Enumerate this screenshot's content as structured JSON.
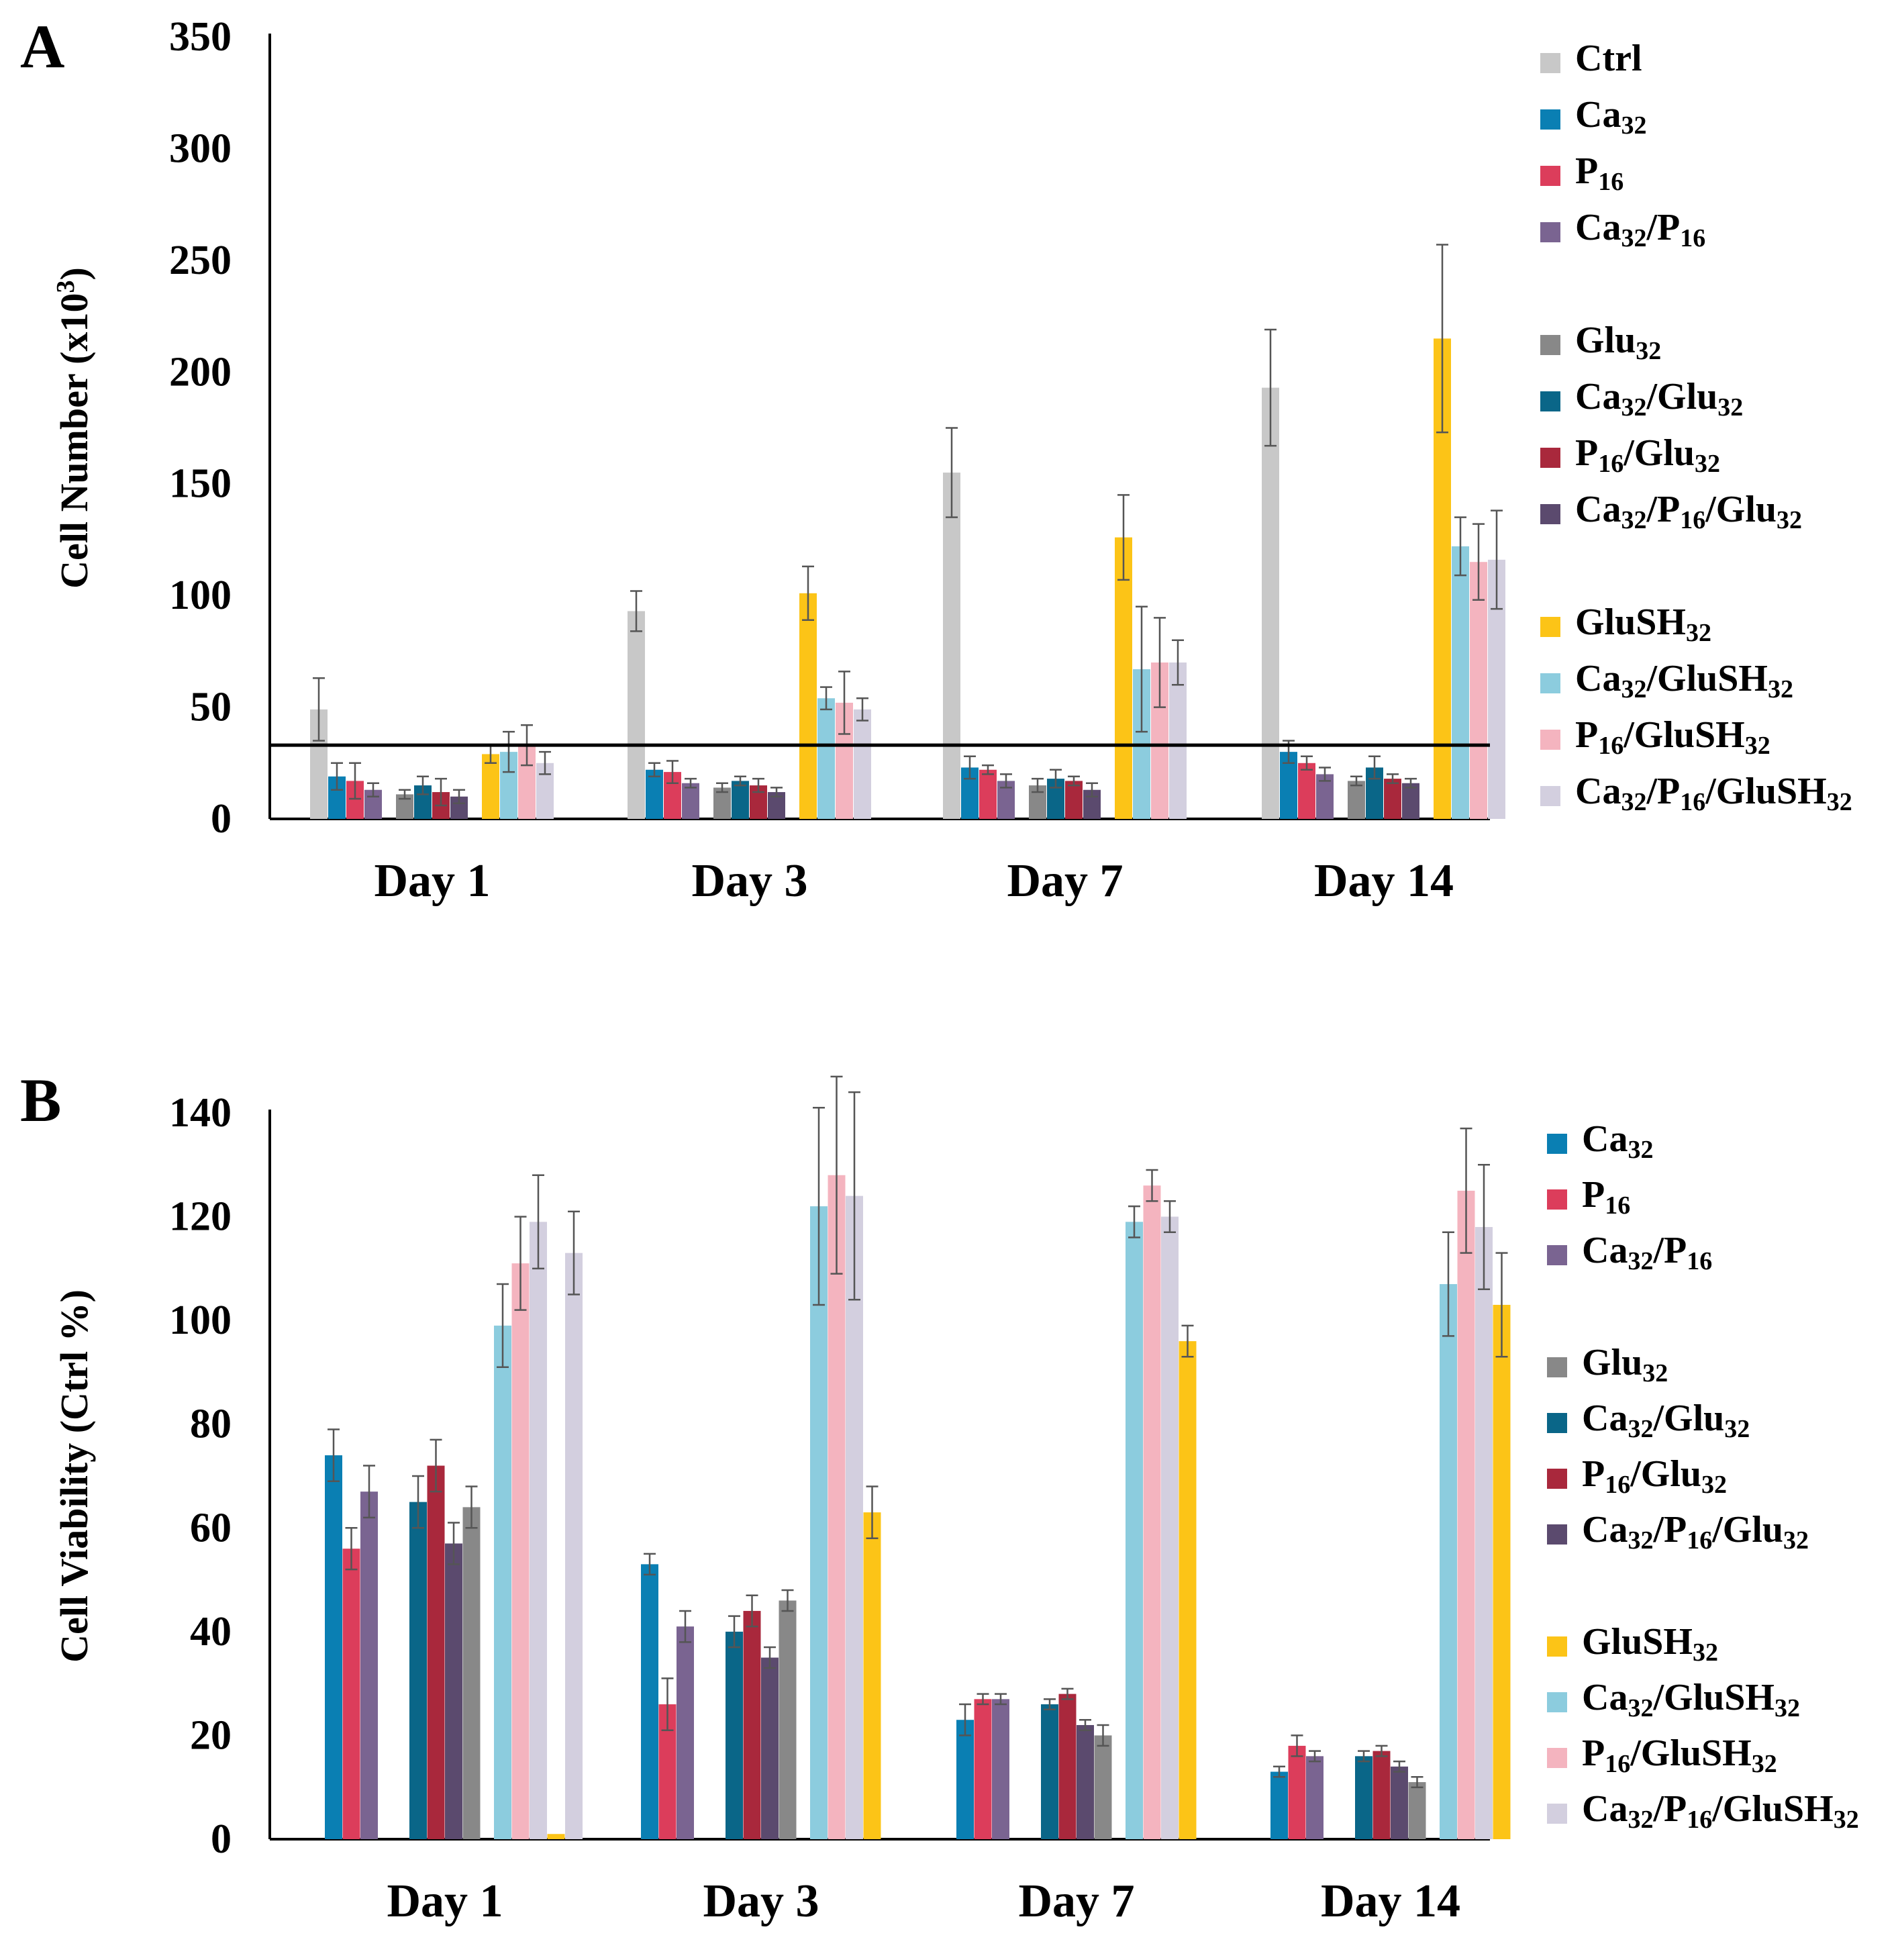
{
  "figure": {
    "panels": [
      "A",
      "B"
    ]
  },
  "chart_data": [
    {
      "id": "A",
      "type": "bar",
      "panel_label": "A",
      "title": "",
      "xlabel": "",
      "ylabel": "Cell Number (x10³)",
      "ylim": [
        0,
        350
      ],
      "yticks": [
        0,
        50,
        100,
        150,
        200,
        250,
        300,
        350
      ],
      "grid": false,
      "legend_position": "right",
      "categories": [
        "Day 1",
        "Day 3",
        "Day 7",
        "Day 14"
      ],
      "reference_line": 33,
      "series": [
        {
          "name": "Ctrl",
          "label": {
            "base": "Ctrl",
            "parts": [
              [
                "Ctrl",
                false
              ]
            ]
          },
          "color": "#c8c8c8",
          "group": 0,
          "values": [
            49,
            93,
            155,
            193
          ],
          "errors": [
            14,
            9,
            20,
            26
          ]
        },
        {
          "name": "Ca32",
          "label": {
            "base": "Ca",
            "parts": [
              [
                "Ca",
                false
              ],
              [
                "32",
                true
              ]
            ]
          },
          "color": "#0a7fb3",
          "group": 0,
          "values": [
            19,
            22,
            23,
            30
          ],
          "errors": [
            6,
            3,
            5,
            5
          ]
        },
        {
          "name": "P16",
          "label": {
            "base": "P",
            "parts": [
              [
                "P",
                false
              ],
              [
                "16",
                true
              ]
            ]
          },
          "color": "#dc3d5b",
          "group": 0,
          "values": [
            17,
            21,
            22,
            25
          ],
          "errors": [
            8,
            5,
            2,
            3
          ]
        },
        {
          "name": "Ca32/P16",
          "label": {
            "base": "Ca/P",
            "parts": [
              [
                "Ca",
                false
              ],
              [
                "32",
                true
              ],
              [
                "/P",
                false
              ],
              [
                "16",
                true
              ]
            ]
          },
          "color": "#7a6491",
          "group": 0,
          "values": [
            13,
            16,
            17,
            20
          ],
          "errors": [
            3,
            2,
            3,
            3
          ]
        },
        {
          "name": "Glu32",
          "label": {
            "base": "Glu",
            "parts": [
              [
                "Glu",
                false
              ],
              [
                "32",
                true
              ]
            ]
          },
          "color": "#888888",
          "group": 1,
          "values": [
            11,
            14,
            15,
            17
          ],
          "errors": [
            2,
            2,
            3,
            2
          ]
        },
        {
          "name": "Ca32/Glu32",
          "label": {
            "base": "Ca/Glu",
            "parts": [
              [
                "Ca",
                false
              ],
              [
                "32",
                true
              ],
              [
                "/Glu",
                false
              ],
              [
                "32",
                true
              ]
            ]
          },
          "color": "#0a6688",
          "group": 1,
          "values": [
            15,
            17,
            18,
            23
          ],
          "errors": [
            4,
            2,
            4,
            5
          ]
        },
        {
          "name": "P16/Glu32",
          "label": {
            "base": "P/Glu",
            "parts": [
              [
                "P",
                false
              ],
              [
                "16",
                true
              ],
              [
                "/Glu",
                false
              ],
              [
                "32",
                true
              ]
            ]
          },
          "color": "#a9283c",
          "group": 1,
          "values": [
            12,
            15,
            17,
            18
          ],
          "errors": [
            6,
            3,
            2,
            2
          ]
        },
        {
          "name": "Ca32/P16/Glu32",
          "label": {
            "base": "Ca/P/Glu",
            "parts": [
              [
                "Ca",
                false
              ],
              [
                "32",
                true
              ],
              [
                "/P",
                false
              ],
              [
                "16",
                true
              ],
              [
                "/Glu",
                false
              ],
              [
                "32",
                true
              ]
            ]
          },
          "color": "#5b4a6e",
          "group": 1,
          "values": [
            10,
            12,
            13,
            16
          ],
          "errors": [
            3,
            2,
            3,
            2
          ]
        },
        {
          "name": "GluSH32",
          "label": {
            "base": "GluSH",
            "parts": [
              [
                "GluSH",
                false
              ],
              [
                "32",
                true
              ]
            ]
          },
          "color": "#fcc417",
          "group": 2,
          "values": [
            29,
            101,
            126,
            215
          ],
          "errors": [
            4,
            12,
            19,
            42
          ]
        },
        {
          "name": "Ca32/GluSH32",
          "label": {
            "base": "Ca/GluSH",
            "parts": [
              [
                "Ca",
                false
              ],
              [
                "32",
                true
              ],
              [
                "/GluSH",
                false
              ],
              [
                "32",
                true
              ]
            ]
          },
          "color": "#8cccde",
          "group": 2,
          "values": [
            30,
            54,
            67,
            122
          ],
          "errors": [
            9,
            5,
            28,
            13
          ]
        },
        {
          "name": "P16/GluSH32",
          "label": {
            "base": "P/GluSH",
            "parts": [
              [
                "P",
                false
              ],
              [
                "16",
                true
              ],
              [
                "/GluSH",
                false
              ],
              [
                "32",
                true
              ]
            ]
          },
          "color": "#f4b4bf",
          "group": 2,
          "values": [
            33,
            52,
            70,
            115
          ],
          "errors": [
            9,
            14,
            20,
            17
          ]
        },
        {
          "name": "Ca32/P16/GluSH32",
          "label": {
            "base": "Ca/P/GluSH",
            "parts": [
              [
                "Ca",
                false
              ],
              [
                "32",
                true
              ],
              [
                "/P",
                false
              ],
              [
                "16",
                true
              ],
              [
                "/GluSH",
                false
              ],
              [
                "32",
                true
              ]
            ]
          },
          "color": "#d3cfdf",
          "group": 2,
          "values": [
            25,
            49,
            70,
            116
          ],
          "errors": [
            5,
            5,
            10,
            22
          ]
        }
      ]
    },
    {
      "id": "B",
      "type": "bar",
      "panel_label": "B",
      "title": "",
      "xlabel": "",
      "ylabel": "Cell Viability (Ctrl %)",
      "ylim": [
        0,
        140
      ],
      "yticks": [
        0,
        20,
        40,
        60,
        80,
        100,
        120,
        140
      ],
      "grid": false,
      "legend_position": "right",
      "categories": [
        "Day 1",
        "Day 3",
        "Day 7",
        "Day 14"
      ],
      "series": [
        {
          "name": "Ca32",
          "label": {
            "base": "Ca",
            "parts": [
              [
                "Ca",
                false
              ],
              [
                "32",
                true
              ]
            ]
          },
          "color": "#0a7fb3",
          "group": 0,
          "values": [
            74,
            53,
            23,
            13
          ],
          "errors": [
            5,
            2,
            3,
            1
          ]
        },
        {
          "name": "P16",
          "label": {
            "base": "P",
            "parts": [
              [
                "P",
                false
              ],
              [
                "16",
                true
              ]
            ]
          },
          "color": "#dc3d5b",
          "group": 0,
          "values": [
            56,
            26,
            27,
            18
          ],
          "errors": [
            4,
            5,
            1,
            2
          ]
        },
        {
          "name": "Ca32/P16",
          "label": {
            "base": "Ca/P",
            "parts": [
              [
                "Ca",
                false
              ],
              [
                "32",
                true
              ],
              [
                "/P",
                false
              ],
              [
                "16",
                true
              ]
            ]
          },
          "color": "#7a6491",
          "group": 0,
          "values": [
            67,
            41,
            27,
            16
          ],
          "errors": [
            5,
            3,
            1,
            1
          ]
        },
        {
          "name": "Glu32",
          "label": {
            "base": "Glu",
            "parts": [
              [
                "Glu",
                false
              ],
              [
                "32",
                true
              ]
            ]
          },
          "color": "#888888",
          "group": 1,
          "values": [
            64,
            46,
            20,
            11
          ],
          "errors": [
            4,
            2,
            2,
            1
          ]
        },
        {
          "name": "Ca32/Glu32",
          "label": {
            "base": "Ca/Glu",
            "parts": [
              [
                "Ca",
                false
              ],
              [
                "32",
                true
              ],
              [
                "/Glu",
                false
              ],
              [
                "32",
                true
              ]
            ]
          },
          "color": "#0a6688",
          "group": 1,
          "values": [
            65,
            40,
            26,
            16
          ],
          "errors": [
            5,
            3,
            1,
            1
          ]
        },
        {
          "name": "P16/Glu32",
          "label": {
            "base": "P/Glu",
            "parts": [
              [
                "P",
                false
              ],
              [
                "16",
                true
              ],
              [
                "/Glu",
                false
              ],
              [
                "32",
                true
              ]
            ]
          },
          "color": "#a9283c",
          "group": 1,
          "values": [
            72,
            44,
            28,
            17
          ],
          "errors": [
            5,
            3,
            1,
            1
          ]
        },
        {
          "name": "Ca32/P16/Glu32",
          "label": {
            "base": "Ca/P/Glu",
            "parts": [
              [
                "Ca",
                false
              ],
              [
                "32",
                true
              ],
              [
                "/P",
                false
              ],
              [
                "16",
                true
              ],
              [
                "/Glu",
                false
              ],
              [
                "32",
                true
              ]
            ]
          },
          "color": "#5b4a6e",
          "group": 1,
          "values": [
            57,
            35,
            22,
            14
          ],
          "errors": [
            4,
            2,
            1,
            1
          ]
        },
        {
          "name": "GluSH32",
          "label": {
            "base": "GluSH",
            "parts": [
              [
                "GluSH",
                false
              ],
              [
                "32",
                true
              ]
            ]
          },
          "color": "#fcc417",
          "group": 2,
          "values": [
            1,
            63,
            96,
            103
          ],
          "errors": [
            0,
            5,
            3,
            10
          ]
        },
        {
          "name": "Ca32/GluSH32",
          "label": {
            "base": "Ca/GluSH",
            "parts": [
              [
                "Ca",
                false
              ],
              [
                "32",
                true
              ],
              [
                "/GluSH",
                false
              ],
              [
                "32",
                true
              ]
            ]
          },
          "color": "#8cccde",
          "group": 2,
          "values": [
            99,
            122,
            119,
            107
          ],
          "errors": [
            8,
            19,
            3,
            10
          ]
        },
        {
          "name": "P16/GluSH32",
          "label": {
            "base": "P/GluSH",
            "parts": [
              [
                "P",
                false
              ],
              [
                "16",
                true
              ],
              [
                "/GluSH",
                false
              ],
              [
                "32",
                true
              ]
            ]
          },
          "color": "#f4b4bf",
          "group": 2,
          "values": [
            111,
            128,
            126,
            125
          ],
          "errors": [
            9,
            19,
            3,
            12
          ]
        },
        {
          "name": "Ca32/P16/GluSH32",
          "label": {
            "base": "Ca/P/GluSH",
            "parts": [
              [
                "Ca",
                false
              ],
              [
                "32",
                true
              ],
              [
                "/P",
                false
              ],
              [
                "16",
                true
              ],
              [
                "/GluSH",
                false
              ],
              [
                "32",
                true
              ]
            ]
          },
          "color": "#d3cfdf",
          "group": 2,
          "values": [
            119,
            124,
            120,
            118
          ],
          "errors": [
            9,
            20,
            3,
            12
          ]
        },
        {
          "name": "Ca32/P16/GluSH32 (extra)",
          "label": {
            "base": "",
            "parts": []
          },
          "color": "#d3cfdf",
          "group": 2,
          "hidden_in_legend": true,
          "values": [
            113,
            0,
            0,
            0
          ],
          "errors": [
            8,
            0,
            0,
            0
          ]
        }
      ]
    }
  ]
}
